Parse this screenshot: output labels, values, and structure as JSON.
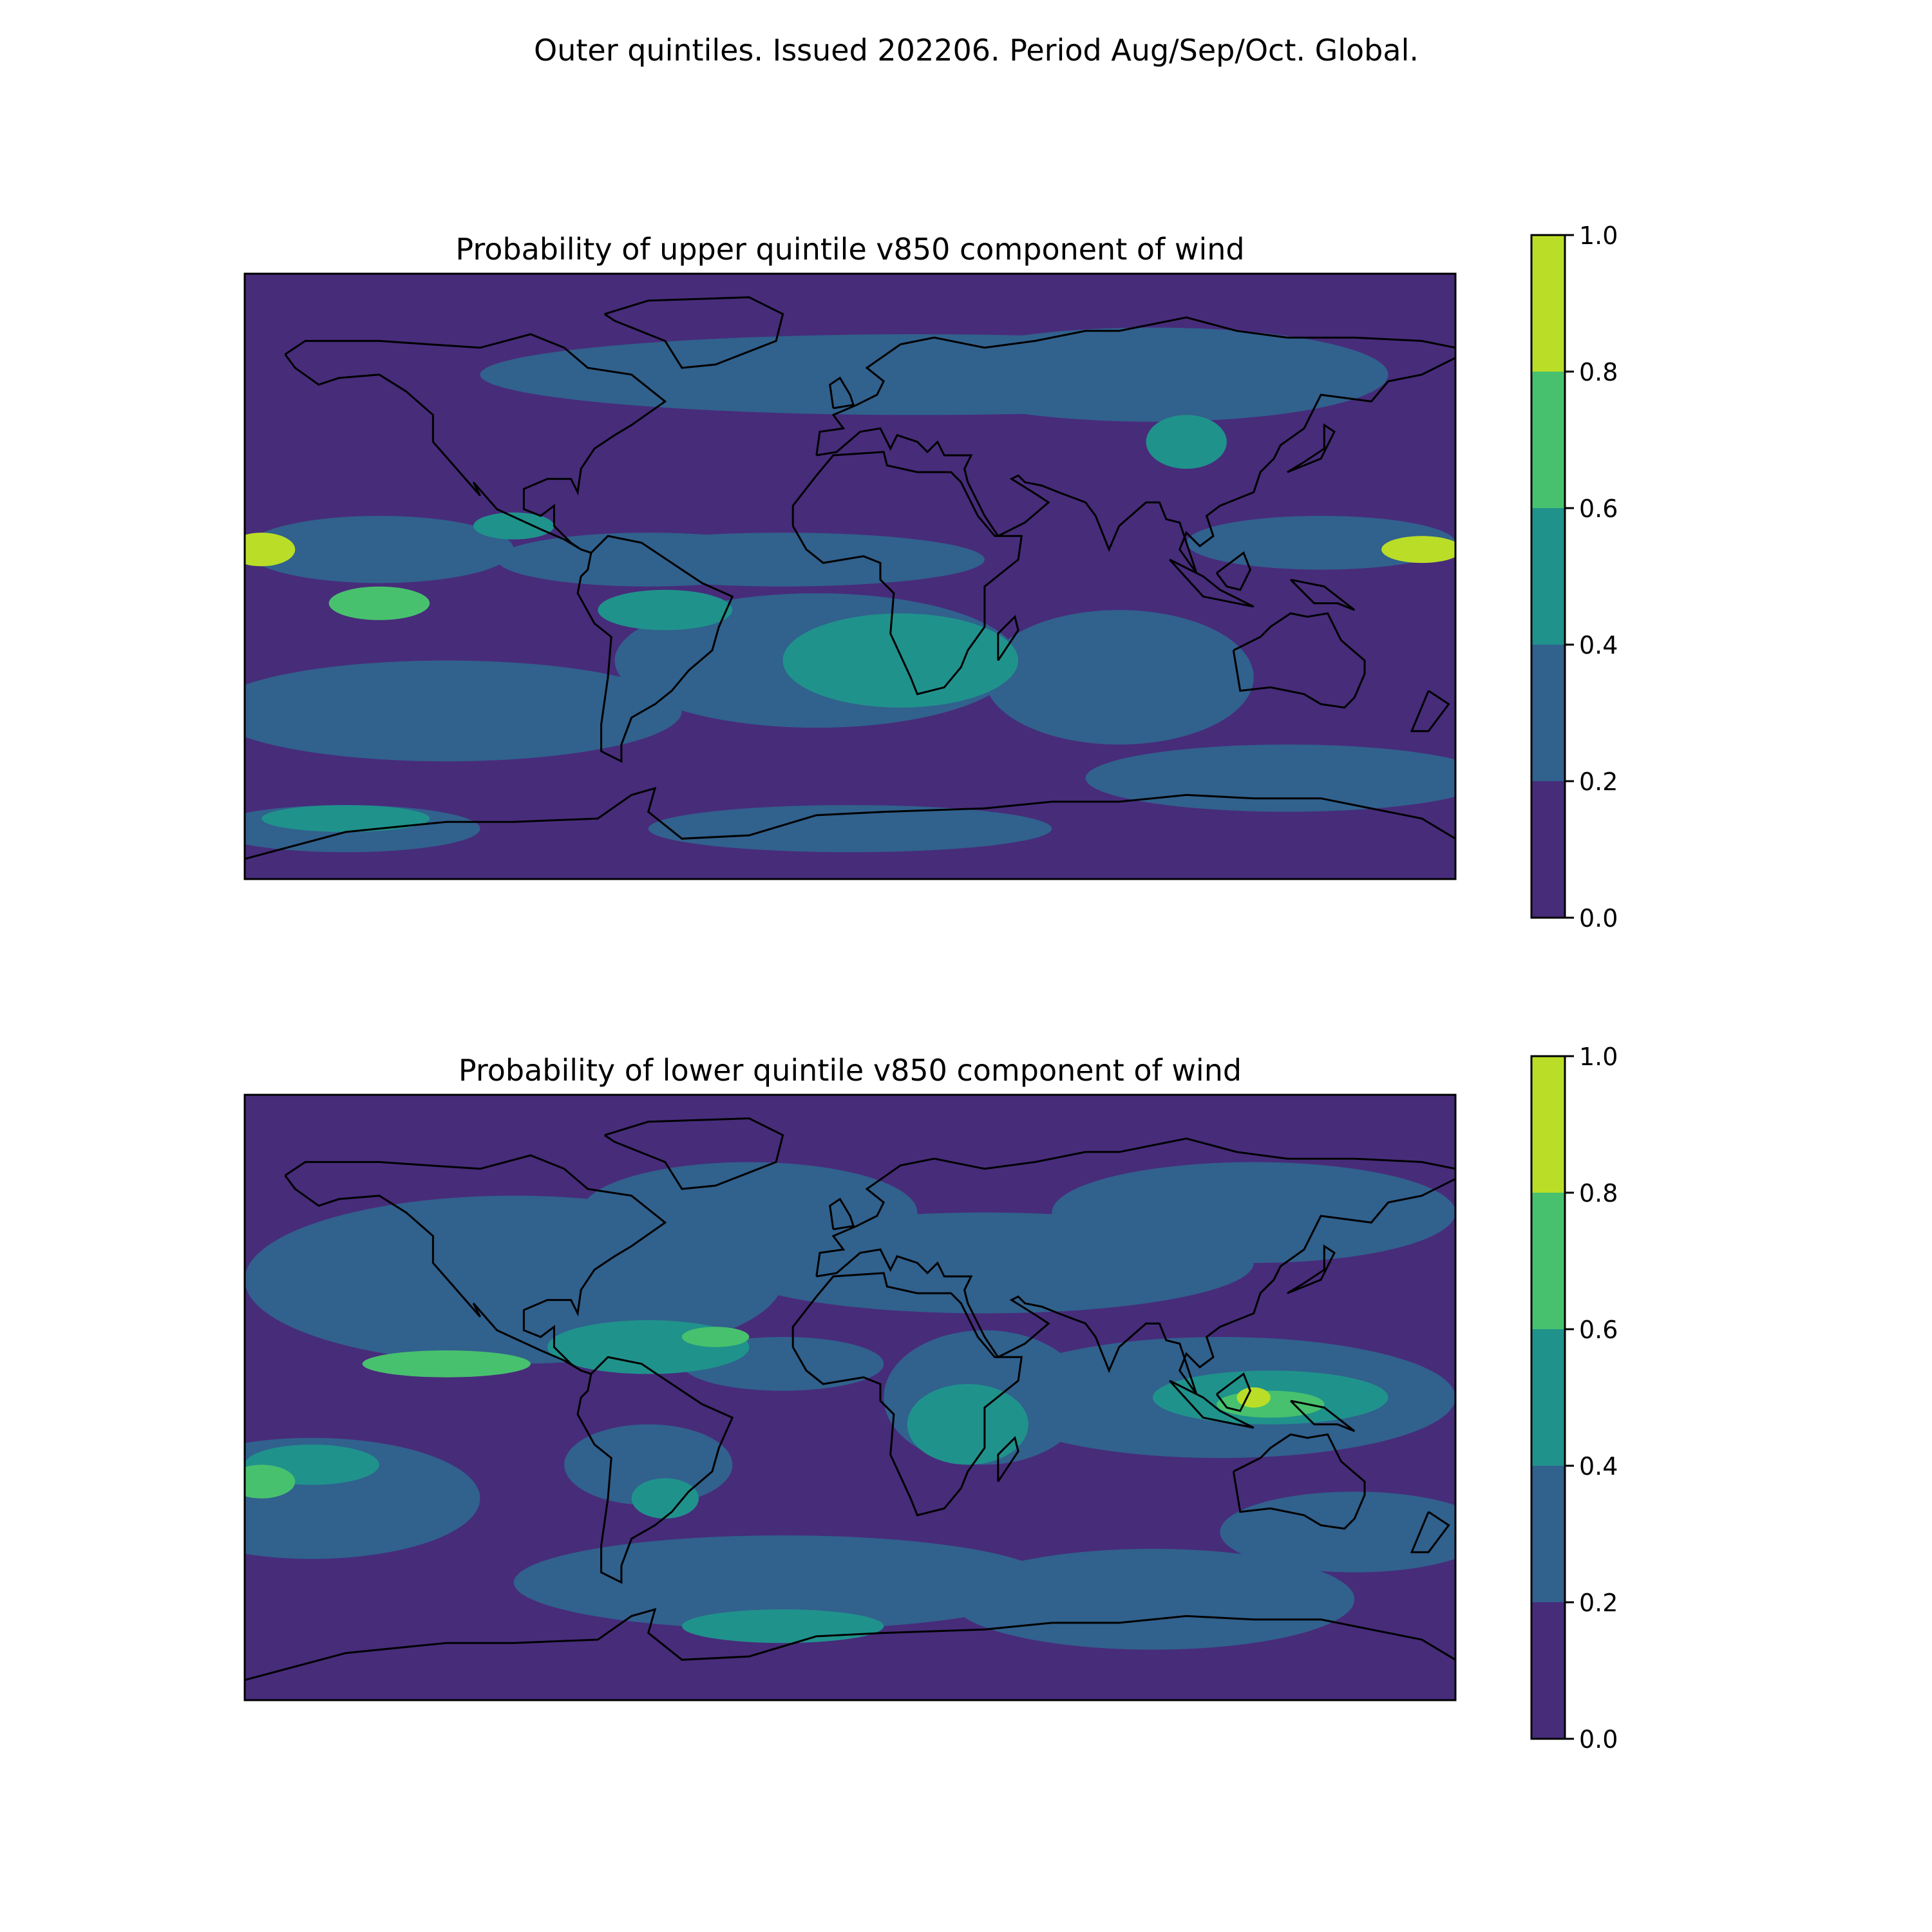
{
  "figure": {
    "suptitle": "Outer quintiles. Issued 202206. Period Aug/Sep/Oct. Global."
  },
  "panels": [
    {
      "id": "upper",
      "title": "Probability of upper quintile v850 component of wind",
      "colorbar": {
        "ticks": [
          "0.0",
          "0.2",
          "0.4",
          "0.6",
          "0.8",
          "1.0"
        ],
        "levels": [
          0.0,
          0.2,
          0.4,
          0.6,
          0.8,
          1.0
        ],
        "colors": [
          "#472c7a",
          "#31618d",
          "#20928c",
          "#48c16e",
          "#bade28"
        ]
      }
    },
    {
      "id": "lower",
      "title": "Probability of lower quintile v850 component of wind",
      "colorbar": {
        "ticks": [
          "0.0",
          "0.2",
          "0.4",
          "0.6",
          "0.8",
          "1.0"
        ],
        "levels": [
          0.0,
          0.2,
          0.4,
          0.6,
          0.8,
          1.0
        ],
        "colors": [
          "#472c7a",
          "#31618d",
          "#20928c",
          "#48c16e",
          "#bade28"
        ]
      }
    }
  ],
  "map": {
    "projection": "Plate Carree",
    "extent": [
      -180,
      180,
      -90,
      90
    ],
    "coastline_color": "#000000",
    "background_class_color": "#472c7a"
  },
  "chart_data": [
    {
      "type": "heatmap",
      "title": "Probability of upper quintile v850 component of wind",
      "colorbar_range": [
        0.0,
        1.0
      ],
      "levels": [
        0.0,
        0.2,
        0.4,
        0.6,
        0.8,
        1.0
      ],
      "notable_regions": [
        {
          "region": "Central equatorial Pacific",
          "value_range": [
            0.8,
            1.0
          ]
        },
        {
          "region": "Western equatorial Pacific",
          "value_range": [
            0.8,
            1.0
          ]
        },
        {
          "region": "Southeast Pacific",
          "value_range": [
            0.6,
            0.8
          ]
        },
        {
          "region": "South Atlantic / southern Africa",
          "value_range": [
            0.4,
            0.6
          ]
        },
        {
          "region": "Central Asia",
          "value_range": [
            0.4,
            0.6
          ]
        }
      ]
    },
    {
      "type": "heatmap",
      "title": "Probability of lower quintile v850 component of wind",
      "colorbar_range": [
        0.0,
        1.0
      ],
      "levels": [
        0.0,
        0.2,
        0.4,
        0.6,
        0.8,
        1.0
      ],
      "notable_regions": [
        {
          "region": "Maritime Continent",
          "value_range": [
            0.8,
            1.0
          ]
        },
        {
          "region": "Eastern tropical Pacific",
          "value_range": [
            0.6,
            0.8
          ]
        },
        {
          "region": "Caribbean / tropical Atlantic",
          "value_range": [
            0.6,
            0.8
          ]
        },
        {
          "region": "East Africa",
          "value_range": [
            0.4,
            0.6
          ]
        },
        {
          "region": "Southern Ocean near Antarctic Peninsula",
          "value_range": [
            0.4,
            0.6
          ]
        }
      ]
    }
  ]
}
